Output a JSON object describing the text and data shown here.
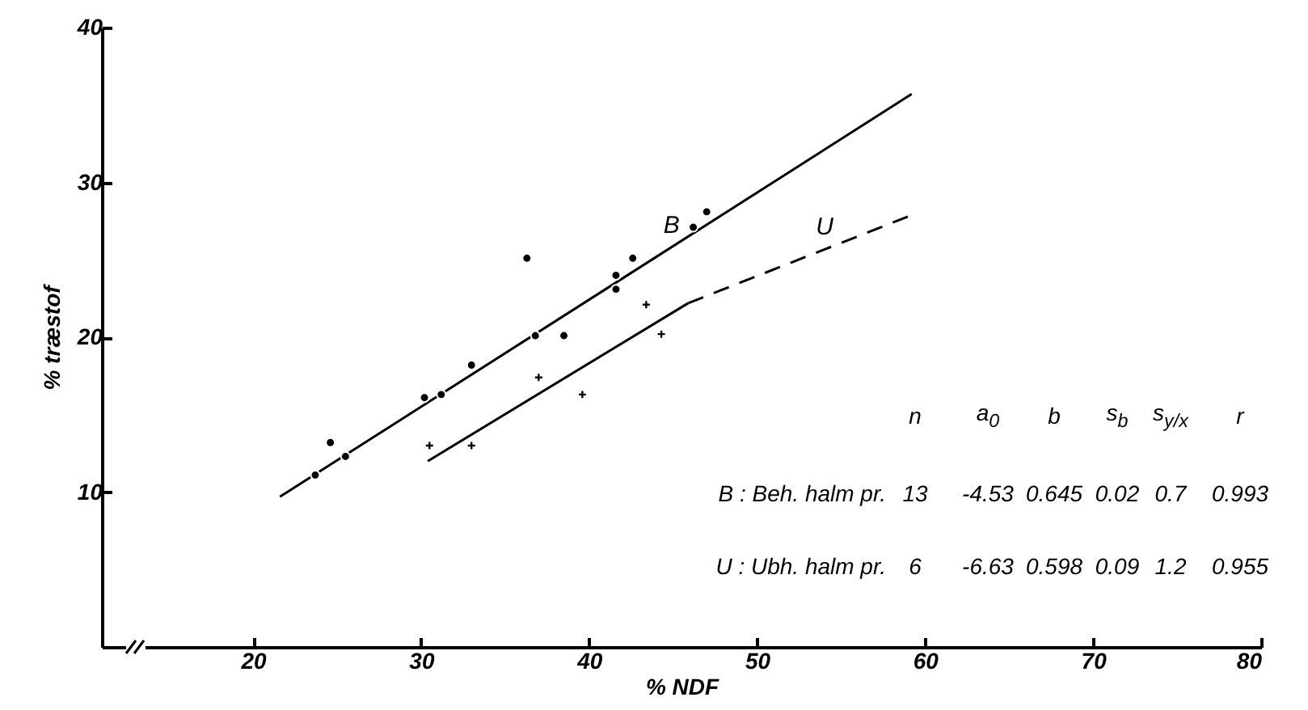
{
  "chart_data": {
    "type": "scatter",
    "xlabel": "% NDF",
    "ylabel": "% træstof",
    "xlim": [
      11,
      80
    ],
    "ylim": [
      0,
      40
    ],
    "xticks": [
      20,
      30,
      40,
      50,
      60,
      70,
      80
    ],
    "yticks": [
      10,
      20,
      30,
      40
    ],
    "grid": false,
    "series": [
      {
        "type": "scatter",
        "marker": "circle",
        "color": "#000000",
        "x": [
          23.7,
          24.6,
          25.5,
          30.2,
          31.2,
          33.0,
          36.3,
          36.8,
          38.5,
          41.6,
          41.6,
          42.6,
          46.2,
          47.0
        ],
        "values": [
          11.1,
          13.2,
          12.3,
          16.1,
          16.3,
          18.2,
          25.1,
          20.1,
          20.1,
          24.0,
          23.1,
          25.1,
          27.1,
          28.1
        ]
      },
      {
        "type": "scatter",
        "marker": "cross",
        "color": "#000000",
        "x": [
          30.5,
          33.0,
          37.0,
          39.6,
          43.4,
          44.3
        ],
        "values": [
          13.0,
          13.0,
          17.4,
          16.3,
          22.1,
          20.2
        ]
      },
      {
        "type": "line",
        "name": "B",
        "line_style": "solid",
        "color": "#000000",
        "x": [
          21.6,
          59.2
        ],
        "values": [
          9.7,
          35.7
        ]
      },
      {
        "type": "line",
        "line_style": "solid",
        "color": "#000000",
        "x": [
          30.4,
          45.9
        ],
        "values": [
          12.0,
          22.2
        ]
      },
      {
        "type": "line",
        "name": "U",
        "line_style": "dashed",
        "color": "#000000",
        "x": [
          45.9,
          59.0
        ],
        "values": [
          22.2,
          27.8
        ]
      }
    ],
    "annotations": [
      "n",
      "a$_{0}$",
      "b",
      "s$_{b}$",
      "s$_{y/x}$",
      "r",
      "B : Beh. halm pr.",
      "13",
      "-4.53",
      "0.645",
      "0.02",
      "0.7",
      "0.993",
      "U : Ubh. halm pr.",
      "6",
      "-6.63",
      "0.598",
      "0.09",
      "1.2",
      "0.955"
    ]
  }
}
